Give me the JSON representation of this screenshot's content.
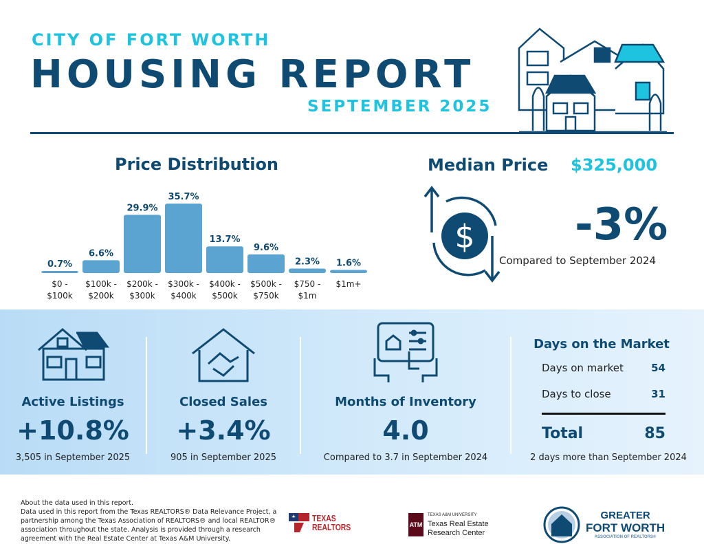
{
  "header": {
    "city": "CITY OF FORT WORTH",
    "title": "HOUSING REPORT",
    "month": "SEPTEMBER 2025"
  },
  "colors": {
    "navy": "#0f4a73",
    "cyan": "#1ec3df",
    "bar": "#5ba3d0",
    "band": "#c4e2f8"
  },
  "chart_data": {
    "type": "bar",
    "title": "Price Distribution",
    "categories": [
      "$0 - $100k",
      "$100k - $200k",
      "$200k - $300k",
      "$300k - $400k",
      "$400k - $500k",
      "$500k - $750k",
      "$750 - $1m",
      "$1m+"
    ],
    "category_lines": [
      [
        "$0 -",
        "$100k"
      ],
      [
        "$100k -",
        "$200k"
      ],
      [
        "$200k -",
        "$300k"
      ],
      [
        "$300k -",
        "$400k"
      ],
      [
        "$400k -",
        "$500k"
      ],
      [
        "$500k -",
        "$750k"
      ],
      [
        "$750 -",
        "$1m"
      ],
      [
        "$1m+",
        ""
      ]
    ],
    "values": [
      0.7,
      6.6,
      29.9,
      35.7,
      13.7,
      9.6,
      2.3,
      1.6
    ],
    "labels": [
      "0.7%",
      "6.6%",
      "29.9%",
      "35.7%",
      "13.7%",
      "9.6%",
      "2.3%",
      "1.6%"
    ],
    "unit": "%",
    "grid": false
  },
  "median": {
    "title": "Median Price",
    "value": "$325,000",
    "change": "-3%",
    "comparison": "Compared to September 2024",
    "icon": "dollar-cycle-icon"
  },
  "stats": {
    "active": {
      "label": "Active Listings",
      "value": "+10.8%",
      "sub": "3,505 in September 2025",
      "icon": "house-icon"
    },
    "closed": {
      "label": "Closed Sales",
      "value": "+3.4%",
      "sub": "905 in September 2025",
      "icon": "handshake-house-icon"
    },
    "inventory": {
      "label": "Months of Inventory",
      "value": "4.0",
      "sub": "Compared to 3.7 in September 2024",
      "icon": "tablet-icon"
    },
    "dom": {
      "title": "Days on the Market",
      "rows": [
        {
          "label": "Days on market",
          "value": "54"
        },
        {
          "label": "Days to close",
          "value": "31"
        }
      ],
      "total_label": "Total",
      "total_value": "85",
      "sub": "2 days more than September 2024"
    }
  },
  "footer": {
    "lines": [
      "About the data used in this report.",
      "Data used in this report from the Texas REALTORS® Data Relevance Project, a partnership among the Texas Association of REALTORS® and local REALTOR® association throughout the state. Analysis is provided through a research agreement with the Real Estate Center at Texas A&M University."
    ],
    "logos": {
      "texas_realtors": [
        "TEXAS",
        "REALTORS"
      ],
      "tamu": {
        "small": "TEXAS A&M UNIVERSITY",
        "line1": "Texas Real Estate",
        "line2": "Research Center"
      },
      "gfw": {
        "line1": "GREATER",
        "line2": "FORT WORTH",
        "line3": "ASSOCIATION OF REALTORS®"
      }
    }
  }
}
